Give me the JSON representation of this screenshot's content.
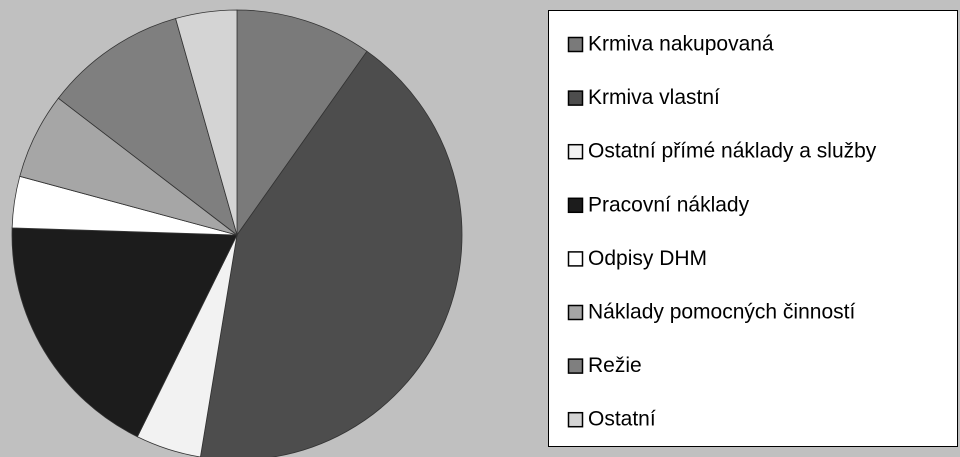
{
  "chart_data": {
    "type": "pie",
    "categories": [
      "Krmiva nakupovaná",
      "Krmiva vlastní",
      "Ostatní přímé náklady a služby",
      "Pracovní náklady",
      "Odpisy DHM",
      "Náklady pomocných činností",
      "Režie",
      "Ostatní"
    ],
    "values": [
      9.8,
      42.8,
      4.7,
      18.2,
      3.7,
      6.2,
      10.2,
      4.4
    ],
    "colors": [
      "#7a7a7a",
      "#4d4d4d",
      "#f2f2f2",
      "#1c1c1c",
      "#ffffff",
      "#a6a6a6",
      "#7f7f7f",
      "#d4d4d4"
    ],
    "legend": "right"
  }
}
